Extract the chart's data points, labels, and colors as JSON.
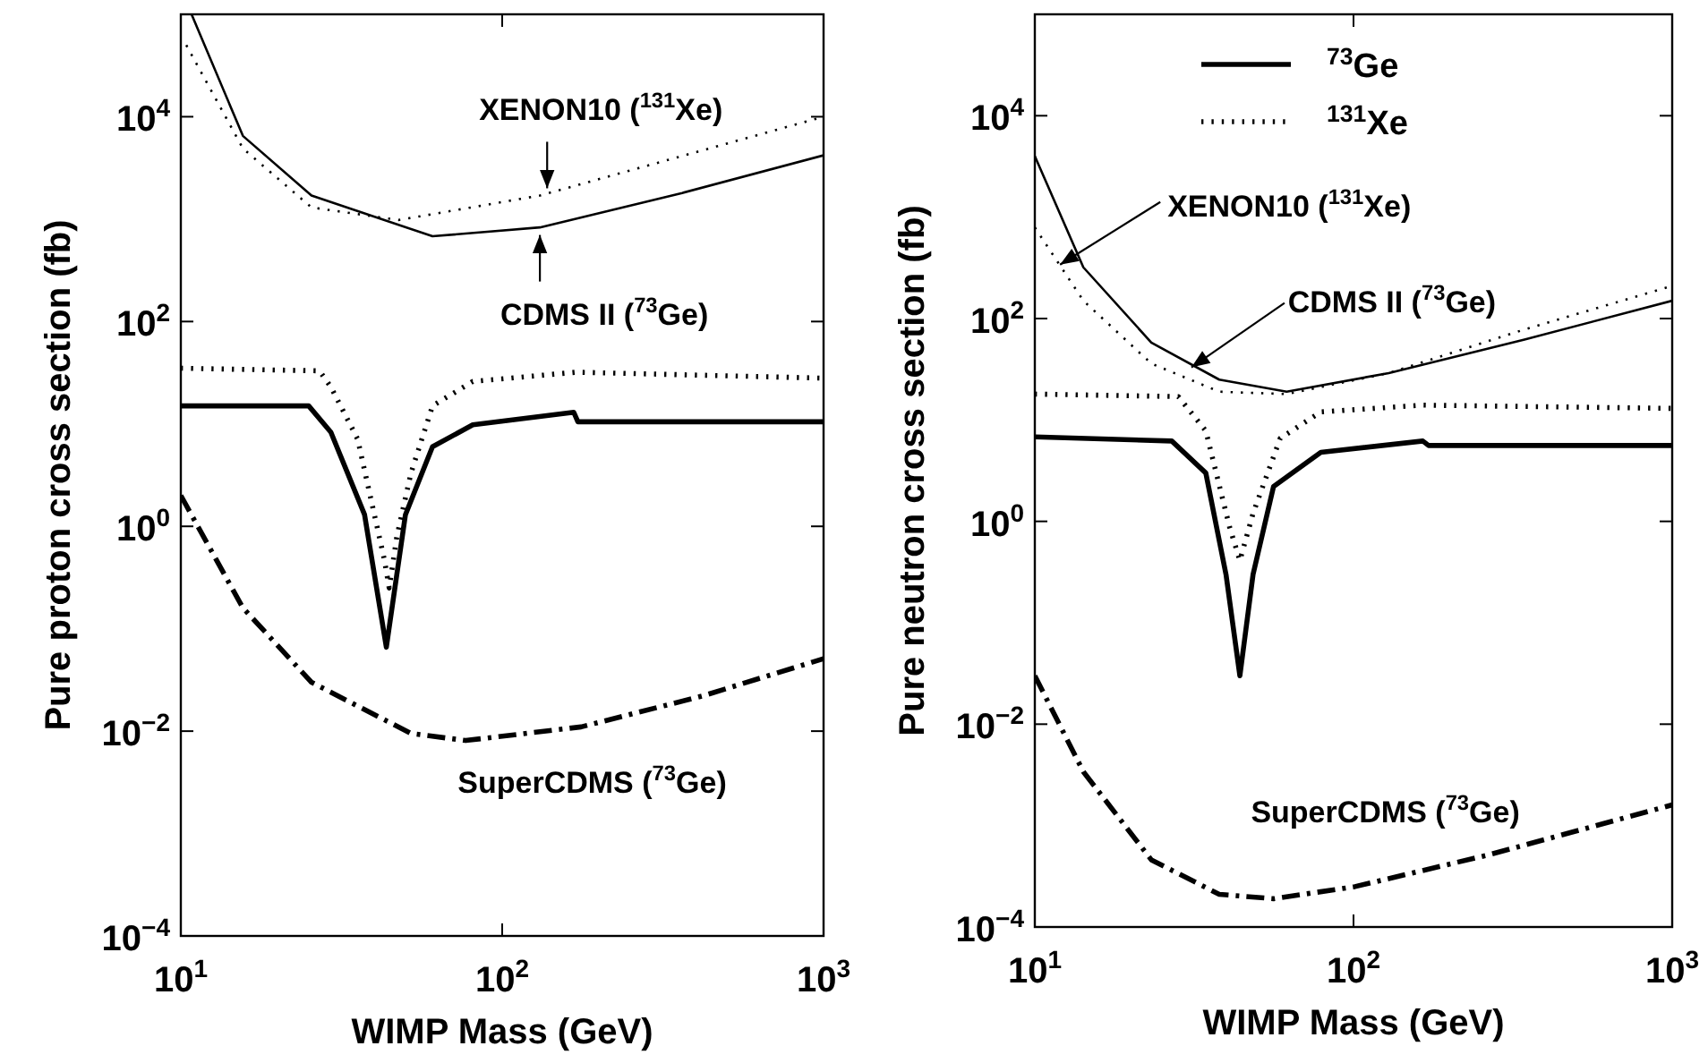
{
  "chart_data": [
    {
      "type": "line",
      "xlabel": "WIMP Mass (GeV)",
      "ylabel": "Pure proton cross section (fb)",
      "log": "xy",
      "legend": false,
      "grid": false,
      "xlim": [
        10,
        1000
      ],
      "xticks": [
        {
          "value": 10,
          "label": "10$^{1}$"
        },
        {
          "value": 100,
          "label": "10$^{2}$"
        },
        {
          "value": 1000,
          "label": "10$^{3}$"
        }
      ],
      "ylim": [
        0.0001,
        100000
      ],
      "yticks": [
        {
          "value": 0.0001,
          "label": "10$^{−4}$"
        },
        {
          "value": 0.01,
          "label": "10$^{−2}$"
        },
        {
          "value": 1,
          "label": "10$^{0}$"
        },
        {
          "value": 100,
          "label": "10$^{2}$"
        },
        {
          "value": 10000,
          "label": "10$^{4}$"
        }
      ],
      "series": [
        {
          "color": "#000000",
          "line_style": "solid",
          "x": [
            10.8,
            15.6,
            25.5,
            60.7,
            131,
            363,
            1000
          ],
          "values": [
            100000,
            6500,
            1700,
            680,
            830,
            1800,
            4200
          ]
        },
        {
          "color": "#000000",
          "line_style": "dotted",
          "x": [
            10.4,
            15.6,
            25.5,
            47.6,
            131,
            1000
          ],
          "values": [
            50000,
            4900,
            1300,
            980,
            1700,
            10000
          ]
        },
        {
          "color": "#000000",
          "line_style": "solid",
          "x": [
            10,
            25,
            29.3,
            37.3,
            43.6,
            50,
            60.7,
            81,
            167,
            172,
            1000
          ],
          "values": [
            15,
            15,
            8.3,
            1.3,
            0.066,
            1.3,
            6.0,
            9.8,
            13,
            10.5,
            10.5
          ]
        },
        {
          "color": "#000000",
          "line_style": "dotted",
          "x": [
            10,
            27,
            29.3,
            35.5,
            43,
            44.5,
            47,
            52,
            60.7,
            81,
            170,
            1000
          ],
          "values": [
            35,
            33,
            23,
            7.1,
            0.47,
            0.25,
            0.79,
            3.3,
            15,
            26,
            32,
            28
          ]
        },
        {
          "color": "#000000",
          "line_style": "dashdot",
          "x": [
            10,
            15.6,
            25.5,
            52,
            77,
            176,
            419,
            1000
          ],
          "values": [
            2.0,
            0.16,
            0.03,
            0.0095,
            0.0081,
            0.011,
            0.022,
            0.051
          ]
        }
      ],
      "annotations": [
        {
          "text": "XENON10 ($^{131}$Xe)",
          "x": 138,
          "y": 2000
        },
        {
          "text": "CDMS II ($^{73}$Ge)",
          "x": 131,
          "y": 700
        },
        "SuperCDMS ($^{73}$Ge)"
      ]
    },
    {
      "type": "line",
      "xlabel": "WIMP Mass (GeV)",
      "ylabel": "Pure neutron cross section (fb)",
      "log": "xy",
      "legend": "top",
      "grid": false,
      "xlim": [
        10,
        1000
      ],
      "xticks": [
        {
          "value": 10,
          "label": "10$^{1}$"
        },
        {
          "value": 100,
          "label": "10$^{2}$"
        },
        {
          "value": 1000,
          "label": "10$^{3}$"
        }
      ],
      "ylim": [
        0.0001,
        100000
      ],
      "yticks": [
        {
          "value": 0.0001,
          "label": "10$^{−4}$"
        },
        {
          "value": 0.01,
          "label": "10$^{−2}$"
        },
        {
          "value": 1,
          "label": "10$^{0}$"
        },
        {
          "value": 100,
          "label": "10$^{2}$"
        },
        {
          "value": 10000,
          "label": "10$^{4}$"
        }
      ],
      "series": [
        {
          "color": "#000000",
          "line_style": "solid",
          "x": [
            10,
            14.2,
            23.2,
            37.9,
            61.7,
            129,
            344,
            1000
          ],
          "values": [
            4000,
            320,
            58,
            25,
            19,
            29,
            62,
            150
          ]
        },
        {
          "color": "#000000",
          "line_style": "dotted",
          "x": [
            10,
            14.2,
            23.2,
            37.9,
            61.7,
            129,
            344,
            1000
          ],
          "values": [
            790,
            150,
            36,
            19,
            18,
            29,
            78,
            210
          ]
        },
        {
          "name": "$^{73}$Ge",
          "color": "#000000",
          "line_style": "solid",
          "x": [
            10,
            26.9,
            34.4,
            39.8,
            44,
            48.4,
            56.1,
            79,
            165,
            172,
            1000
          ],
          "values": [
            6.8,
            6.2,
            3.0,
            0.3,
            0.03,
            0.3,
            2.2,
            4.8,
            6.2,
            5.6,
            5.6
          ]
        },
        {
          "name": "$^{131}$Xe",
          "color": "#000000",
          "line_style": "dotted",
          "x": [
            10,
            28.2,
            34.4,
            40.8,
            44,
            48.4,
            58.9,
            79,
            165,
            1000
          ],
          "values": [
            18,
            17,
            7.8,
            0.89,
            0.41,
            1.2,
            6.6,
            12,
            14,
            13
          ]
        },
        {
          "color": "#000000",
          "line_style": "dashdot",
          "x": [
            10,
            14.2,
            23.2,
            37.9,
            56.1,
            101,
            269,
            1000
          ],
          "values": [
            0.03,
            0.0034,
            0.00046,
            0.00021,
            0.00019,
            0.00025,
            0.00052,
            0.0016
          ]
        }
      ],
      "annotations": [
        {
          "text": "XENON10 ($^{131}$Xe)",
          "x": 12,
          "y": 340
        },
        {
          "text": "CDMS II ($^{73}$Ge)",
          "x": 31,
          "y": 33
        },
        "SuperCDMS ($^{73}$Ge)"
      ]
    }
  ]
}
